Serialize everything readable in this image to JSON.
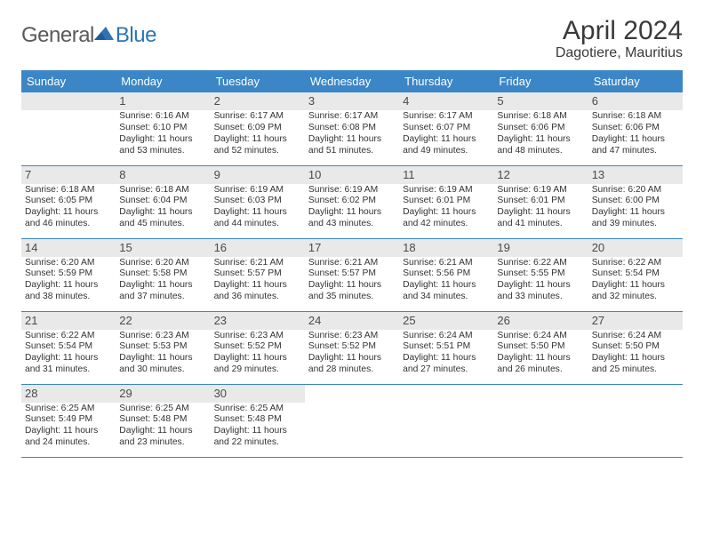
{
  "brand": {
    "part1": "General",
    "part2": "Blue"
  },
  "title": "April 2024",
  "location": "Dagotiere, Mauritius",
  "colors": {
    "header_bg": "#3b86c6",
    "header_text": "#ffffff",
    "daynum_bg": "#e9e9e9",
    "rule": "#3b86c6",
    "logo_gray": "#5a5a5a",
    "logo_blue": "#2e74b5"
  },
  "weekdays": [
    "Sunday",
    "Monday",
    "Tuesday",
    "Wednesday",
    "Thursday",
    "Friday",
    "Saturday"
  ],
  "layout": {
    "first_weekday_index": 1,
    "days_in_month": 30,
    "rows": 5,
    "cols": 7
  },
  "days": [
    {
      "n": 1,
      "sunrise": "6:16 AM",
      "sunset": "6:10 PM",
      "daylight": "11 hours and 53 minutes."
    },
    {
      "n": 2,
      "sunrise": "6:17 AM",
      "sunset": "6:09 PM",
      "daylight": "11 hours and 52 minutes."
    },
    {
      "n": 3,
      "sunrise": "6:17 AM",
      "sunset": "6:08 PM",
      "daylight": "11 hours and 51 minutes."
    },
    {
      "n": 4,
      "sunrise": "6:17 AM",
      "sunset": "6:07 PM",
      "daylight": "11 hours and 49 minutes."
    },
    {
      "n": 5,
      "sunrise": "6:18 AM",
      "sunset": "6:06 PM",
      "daylight": "11 hours and 48 minutes."
    },
    {
      "n": 6,
      "sunrise": "6:18 AM",
      "sunset": "6:06 PM",
      "daylight": "11 hours and 47 minutes."
    },
    {
      "n": 7,
      "sunrise": "6:18 AM",
      "sunset": "6:05 PM",
      "daylight": "11 hours and 46 minutes."
    },
    {
      "n": 8,
      "sunrise": "6:18 AM",
      "sunset": "6:04 PM",
      "daylight": "11 hours and 45 minutes."
    },
    {
      "n": 9,
      "sunrise": "6:19 AM",
      "sunset": "6:03 PM",
      "daylight": "11 hours and 44 minutes."
    },
    {
      "n": 10,
      "sunrise": "6:19 AM",
      "sunset": "6:02 PM",
      "daylight": "11 hours and 43 minutes."
    },
    {
      "n": 11,
      "sunrise": "6:19 AM",
      "sunset": "6:01 PM",
      "daylight": "11 hours and 42 minutes."
    },
    {
      "n": 12,
      "sunrise": "6:19 AM",
      "sunset": "6:01 PM",
      "daylight": "11 hours and 41 minutes."
    },
    {
      "n": 13,
      "sunrise": "6:20 AM",
      "sunset": "6:00 PM",
      "daylight": "11 hours and 39 minutes."
    },
    {
      "n": 14,
      "sunrise": "6:20 AM",
      "sunset": "5:59 PM",
      "daylight": "11 hours and 38 minutes."
    },
    {
      "n": 15,
      "sunrise": "6:20 AM",
      "sunset": "5:58 PM",
      "daylight": "11 hours and 37 minutes."
    },
    {
      "n": 16,
      "sunrise": "6:21 AM",
      "sunset": "5:57 PM",
      "daylight": "11 hours and 36 minutes."
    },
    {
      "n": 17,
      "sunrise": "6:21 AM",
      "sunset": "5:57 PM",
      "daylight": "11 hours and 35 minutes."
    },
    {
      "n": 18,
      "sunrise": "6:21 AM",
      "sunset": "5:56 PM",
      "daylight": "11 hours and 34 minutes."
    },
    {
      "n": 19,
      "sunrise": "6:22 AM",
      "sunset": "5:55 PM",
      "daylight": "11 hours and 33 minutes."
    },
    {
      "n": 20,
      "sunrise": "6:22 AM",
      "sunset": "5:54 PM",
      "daylight": "11 hours and 32 minutes."
    },
    {
      "n": 21,
      "sunrise": "6:22 AM",
      "sunset": "5:54 PM",
      "daylight": "11 hours and 31 minutes."
    },
    {
      "n": 22,
      "sunrise": "6:23 AM",
      "sunset": "5:53 PM",
      "daylight": "11 hours and 30 minutes."
    },
    {
      "n": 23,
      "sunrise": "6:23 AM",
      "sunset": "5:52 PM",
      "daylight": "11 hours and 29 minutes."
    },
    {
      "n": 24,
      "sunrise": "6:23 AM",
      "sunset": "5:52 PM",
      "daylight": "11 hours and 28 minutes."
    },
    {
      "n": 25,
      "sunrise": "6:24 AM",
      "sunset": "5:51 PM",
      "daylight": "11 hours and 27 minutes."
    },
    {
      "n": 26,
      "sunrise": "6:24 AM",
      "sunset": "5:50 PM",
      "daylight": "11 hours and 26 minutes."
    },
    {
      "n": 27,
      "sunrise": "6:24 AM",
      "sunset": "5:50 PM",
      "daylight": "11 hours and 25 minutes."
    },
    {
      "n": 28,
      "sunrise": "6:25 AM",
      "sunset": "5:49 PM",
      "daylight": "11 hours and 24 minutes."
    },
    {
      "n": 29,
      "sunrise": "6:25 AM",
      "sunset": "5:48 PM",
      "daylight": "11 hours and 23 minutes."
    },
    {
      "n": 30,
      "sunrise": "6:25 AM",
      "sunset": "5:48 PM",
      "daylight": "11 hours and 22 minutes."
    }
  ],
  "labels": {
    "sunrise": "Sunrise:",
    "sunset": "Sunset:",
    "daylight": "Daylight:"
  }
}
